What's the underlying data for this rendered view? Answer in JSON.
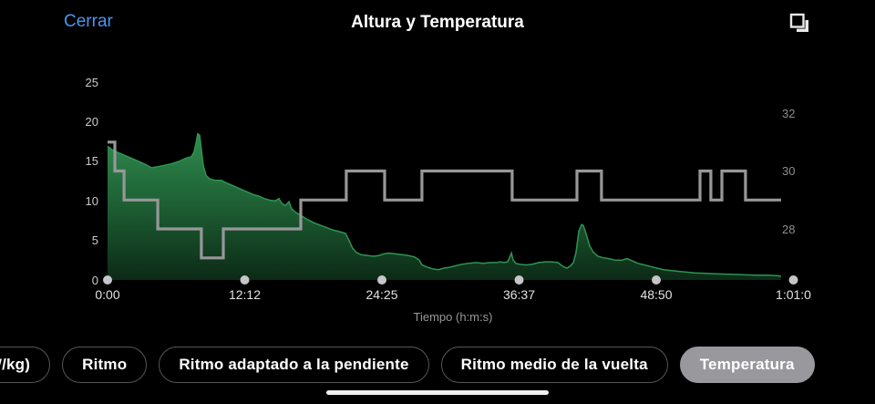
{
  "top_bar": {
    "close_label": "Cerrar",
    "title": "Altura y Temperatura",
    "expand_icon": "overlapping-squares-icon"
  },
  "colors": {
    "background": "#000000",
    "accent_blue": "#4896f0",
    "area_green_top": "#2f8c4e",
    "area_green_mid": "#1d5e33",
    "area_green_bottom": "#0c2a17",
    "area_edge_green": "#2f9350",
    "temp_line_gray": "#97979a",
    "selected_pill_gray": "#98989d",
    "tick_dot_gray": "#c6c6c8"
  },
  "chart_data": {
    "type": [
      "area",
      "step-line"
    ],
    "title": "Altura y Temperatura",
    "xlabel": "Tiempo (h:m:s)",
    "x_ticks": [
      {
        "t": 0,
        "label": "0:00"
      },
      {
        "t": 732.6,
        "label": "12:12"
      },
      {
        "t": 1465.2,
        "label": "24:25"
      },
      {
        "t": 2197.8,
        "label": "36:37"
      },
      {
        "t": 2930.4,
        "label": "48:50"
      },
      {
        "t": 3663,
        "label": "1:01:0"
      }
    ],
    "left_axis": {
      "ticks": [
        "0",
        "5",
        "10",
        "15",
        "20",
        "25"
      ],
      "values": [
        0,
        5,
        10,
        15,
        20,
        25
      ],
      "range": [
        0,
        25
      ]
    },
    "right_axis": {
      "ticks": [
        "28",
        "30",
        "32"
      ],
      "values": [
        28,
        30,
        32
      ],
      "range": [
        26.3,
        33
      ]
    },
    "series": [
      {
        "name": "altura",
        "type": "area",
        "unit": "m",
        "points": [
          [
            0,
            16.9
          ],
          [
            29,
            16.4
          ],
          [
            68,
            16.0
          ],
          [
            117,
            15.5
          ],
          [
            166,
            15.0
          ],
          [
            204,
            14.6
          ],
          [
            234,
            14.2
          ],
          [
            263,
            14.3
          ],
          [
            302,
            14.5
          ],
          [
            341,
            14.7
          ],
          [
            380,
            15.0
          ],
          [
            419,
            15.4
          ],
          [
            448,
            15.6
          ],
          [
            462,
            16.2
          ],
          [
            472,
            17.3
          ],
          [
            482,
            18.5
          ],
          [
            492,
            18.3
          ],
          [
            501,
            16.5
          ],
          [
            511,
            14.5
          ],
          [
            526,
            13.2
          ],
          [
            545,
            12.8
          ],
          [
            574,
            12.6
          ],
          [
            608,
            12.6
          ],
          [
            633,
            12.3
          ],
          [
            662,
            12.0
          ],
          [
            691,
            11.7
          ],
          [
            720,
            11.4
          ],
          [
            750,
            11.1
          ],
          [
            779,
            10.8
          ],
          [
            808,
            10.6
          ],
          [
            837,
            10.3
          ],
          [
            866,
            10.1
          ],
          [
            896,
            10.0
          ],
          [
            915,
            10.3
          ],
          [
            930,
            9.7
          ],
          [
            949,
            9.4
          ],
          [
            969,
            9.9
          ],
          [
            983,
            9.0
          ],
          [
            1008,
            8.5
          ],
          [
            1037,
            8.1
          ],
          [
            1071,
            7.6
          ],
          [
            1105,
            7.2
          ],
          [
            1139,
            6.9
          ],
          [
            1173,
            6.6
          ],
          [
            1207,
            6.3
          ],
          [
            1241,
            6.1
          ],
          [
            1271,
            5.9
          ],
          [
            1290,
            5.0
          ],
          [
            1309,
            4.0
          ],
          [
            1329,
            3.5
          ],
          [
            1353,
            3.2
          ],
          [
            1387,
            3.1
          ],
          [
            1421,
            3.0
          ],
          [
            1451,
            3.1
          ],
          [
            1475,
            3.3
          ],
          [
            1504,
            3.4
          ],
          [
            1538,
            3.3
          ],
          [
            1572,
            3.2
          ],
          [
            1606,
            3.1
          ],
          [
            1641,
            2.9
          ],
          [
            1665,
            2.5
          ],
          [
            1679,
            1.9
          ],
          [
            1709,
            1.6
          ],
          [
            1738,
            1.4
          ],
          [
            1767,
            1.3
          ],
          [
            1796,
            1.5
          ],
          [
            1826,
            1.6
          ],
          [
            1860,
            1.8
          ],
          [
            1894,
            2.0
          ],
          [
            1928,
            2.1
          ],
          [
            1967,
            2.2
          ],
          [
            2006,
            2.1
          ],
          [
            2045,
            2.2
          ],
          [
            2079,
            2.2
          ],
          [
            2098,
            2.3
          ],
          [
            2118,
            2.2
          ],
          [
            2137,
            2.3
          ],
          [
            2152,
            3.1
          ],
          [
            2157,
            3.4
          ],
          [
            2166,
            2.5
          ],
          [
            2181,
            2.1
          ],
          [
            2200,
            2.0
          ],
          [
            2234,
            1.9
          ],
          [
            2269,
            2.0
          ],
          [
            2303,
            2.2
          ],
          [
            2337,
            2.3
          ],
          [
            2371,
            2.3
          ],
          [
            2405,
            2.2
          ],
          [
            2434,
            1.7
          ],
          [
            2454,
            1.5
          ],
          [
            2473,
            1.8
          ],
          [
            2488,
            2.2
          ],
          [
            2502,
            3.5
          ],
          [
            2517,
            6.2
          ],
          [
            2531,
            7.0
          ],
          [
            2541,
            6.9
          ],
          [
            2556,
            5.8
          ],
          [
            2575,
            4.3
          ],
          [
            2595,
            3.5
          ],
          [
            2619,
            3.0
          ],
          [
            2648,
            2.8
          ],
          [
            2677,
            2.7
          ],
          [
            2712,
            2.5
          ],
          [
            2746,
            2.5
          ],
          [
            2775,
            2.7
          ],
          [
            2804,
            2.4
          ],
          [
            2833,
            2.1
          ],
          [
            2867,
            1.9
          ],
          [
            2901,
            1.7
          ],
          [
            2935,
            1.5
          ],
          [
            2969,
            1.3
          ],
          [
            3008,
            1.2
          ],
          [
            3047,
            1.1
          ],
          [
            3086,
            1.0
          ],
          [
            3135,
            0.9
          ],
          [
            3183,
            0.85
          ],
          [
            3232,
            0.8
          ],
          [
            3290,
            0.75
          ],
          [
            3349,
            0.7
          ],
          [
            3407,
            0.65
          ],
          [
            3466,
            0.6
          ],
          [
            3524,
            0.6
          ],
          [
            3573,
            0.55
          ],
          [
            3597,
            0.5
          ]
        ]
      },
      {
        "name": "temperatura",
        "type": "step",
        "unit": "degC",
        "t_end": 3597,
        "steps": [
          [
            0,
            31
          ],
          [
            39,
            30
          ],
          [
            88,
            29
          ],
          [
            268,
            28
          ],
          [
            501,
            27
          ],
          [
            618,
            28
          ],
          [
            1032,
            29
          ],
          [
            1275,
            30
          ],
          [
            1480,
            29
          ],
          [
            1679,
            30
          ],
          [
            2161,
            29
          ],
          [
            2507,
            30
          ],
          [
            2638,
            29
          ],
          [
            3164,
            30
          ],
          [
            3222,
            29
          ],
          [
            3281,
            30
          ],
          [
            3407,
            29
          ]
        ]
      }
    ]
  },
  "filters": {
    "buttons": [
      {
        "label": "(W/kg)",
        "selected": false
      },
      {
        "label": "Ritmo",
        "selected": false
      },
      {
        "label": "Ritmo adaptado a la pendiente",
        "selected": false
      },
      {
        "label": "Ritmo medio de la vuelta",
        "selected": false
      },
      {
        "label": "Temperatura",
        "selected": true
      }
    ]
  }
}
